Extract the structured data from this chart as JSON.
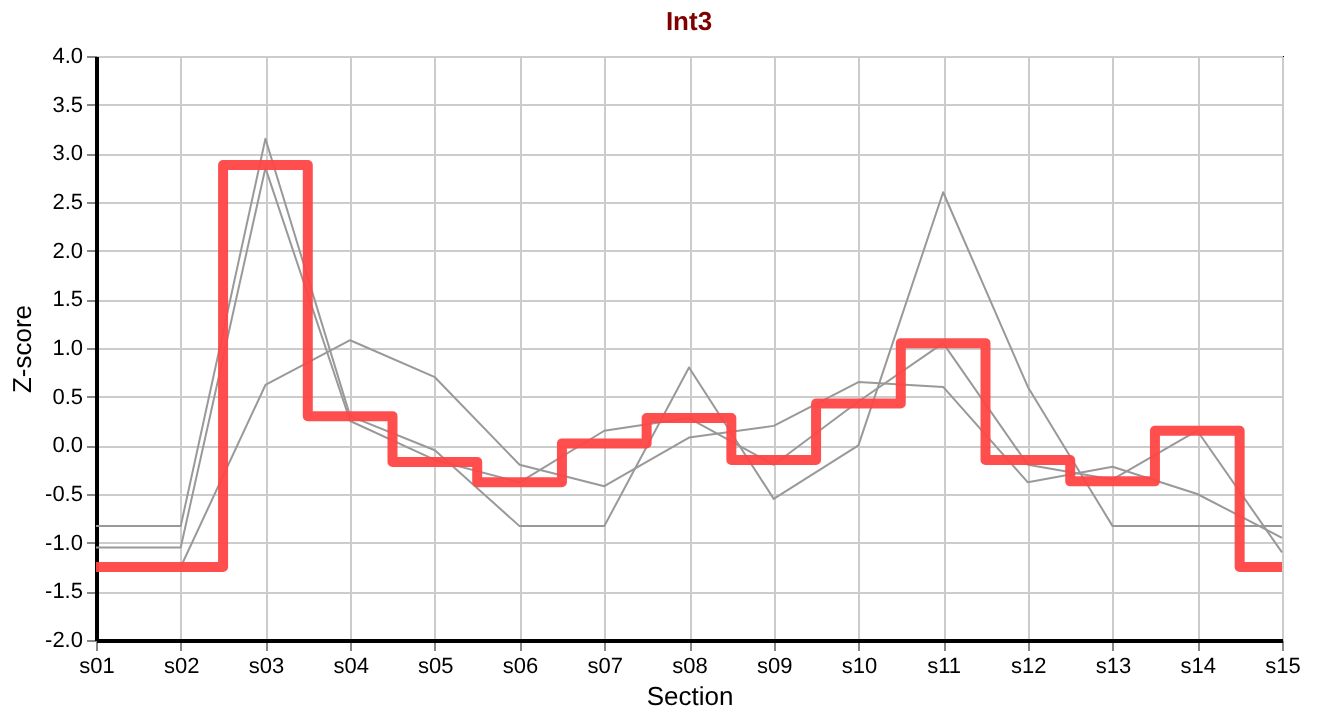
{
  "chart_data": {
    "type": "line",
    "title": "Int3",
    "xlabel": "Section",
    "ylabel": "Z-score",
    "categories": [
      "s01",
      "s02",
      "s03",
      "s04",
      "s05",
      "s06",
      "s07",
      "s08",
      "s09",
      "s10",
      "s11",
      "s12",
      "s13",
      "s14",
      "s15"
    ],
    "series": [
      {
        "color": "#999999",
        "values": [
          -0.83,
          -0.83,
          3.15,
          0.3,
          -0.05,
          -0.83,
          -0.83,
          0.8,
          -0.55,
          0.0,
          2.6,
          0.6,
          -0.83,
          -0.83,
          -0.83
        ]
      },
      {
        "color": "#999999",
        "values": [
          -1.05,
          -1.05,
          2.85,
          0.25,
          -0.15,
          -0.38,
          0.15,
          0.28,
          -0.2,
          0.45,
          1.05,
          -0.2,
          -0.35,
          0.15,
          -1.1
        ]
      },
      {
        "color": "#999999",
        "values": [
          null,
          -1.25,
          0.62,
          1.08,
          0.7,
          -0.2,
          -0.42,
          0.08,
          0.2,
          0.65,
          0.6,
          -0.38,
          -0.22,
          -0.5,
          -0.95
        ]
      },
      {
        "type": "step",
        "color": "#ff4444",
        "values": [
          -1.25,
          -1.25,
          2.88,
          0.3,
          -0.17,
          -0.38,
          0.02,
          0.28,
          -0.15,
          0.43,
          1.05,
          -0.15,
          -0.37,
          0.15,
          -1.25
        ]
      }
    ],
    "ylim": [
      -2.0,
      4.0
    ],
    "yticks": [
      {
        "value": -2,
        "label": "-2.0"
      },
      {
        "value": -1.5,
        "label": "-1.5"
      },
      {
        "value": -1,
        "label": "-1.0"
      },
      {
        "value": -0.5,
        "label": "-0.5"
      },
      {
        "value": 0,
        "label": "0.0"
      },
      {
        "value": 0.5,
        "label": "0.5"
      },
      {
        "value": 1,
        "label": "1.0"
      },
      {
        "value": 1.5,
        "label": "1.5"
      },
      {
        "value": 2,
        "label": "2.0"
      },
      {
        "value": 2.5,
        "label": "2.5"
      },
      {
        "value": 3,
        "label": "3.0"
      },
      {
        "value": 3.5,
        "label": "3.5"
      },
      {
        "value": 4,
        "label": "4.0"
      }
    ],
    "grid": true,
    "marker": "none",
    "line_style": "solid"
  }
}
